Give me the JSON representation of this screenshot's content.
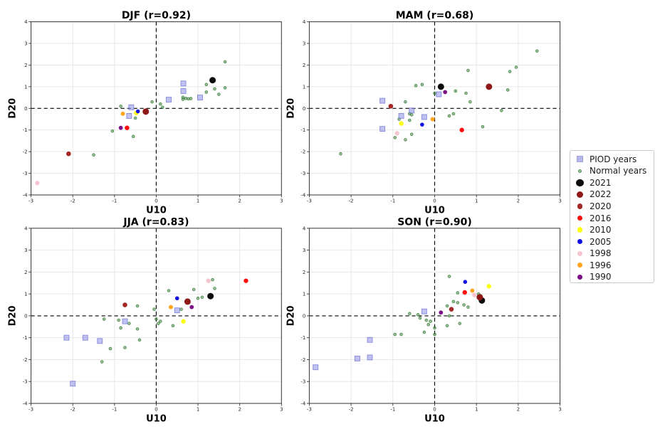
{
  "legend": {
    "items": [
      {
        "key": "piod",
        "label": "PIOD years",
        "marker": "square",
        "color": "#b5b7e9",
        "edge": "#9fa2de",
        "legend_size": 7
      },
      {
        "key": "normal",
        "label": "Normal years",
        "marker": "dot",
        "color": "#9cc49c",
        "edge": "#559155",
        "legend_size": 3.4
      },
      {
        "key": "2021",
        "label": "2021",
        "marker": "dot",
        "color": "#0a0a0a",
        "legend_size": 10.2
      },
      {
        "key": "2022",
        "label": "2022",
        "marker": "dot",
        "color": "#8e1818",
        "legend_size": 9.8
      },
      {
        "key": "2020",
        "label": "2020",
        "marker": "dot",
        "color": "#a32727",
        "legend_size": 7.2
      },
      {
        "key": "2016",
        "label": "2016",
        "marker": "dot",
        "color": "#fc0d0d",
        "legend_size": 7.2
      },
      {
        "key": "2010",
        "label": "2010",
        "marker": "dot",
        "color": "#fdfd13",
        "legend_size": 7.6
      },
      {
        "key": "2005",
        "label": "2005",
        "marker": "dot",
        "color": "#1212e0",
        "legend_size": 7.0
      },
      {
        "key": "1998",
        "label": "1998",
        "marker": "dot",
        "color": "#f6c3d0",
        "legend_size": 7.2
      },
      {
        "key": "1996",
        "label": "1996",
        "marker": "dot",
        "color": "#ffa51e",
        "legend_size": 6.8
      },
      {
        "key": "1990",
        "label": "1990",
        "marker": "dot",
        "color": "#7d0f86",
        "legend_size": 6.8
      }
    ]
  },
  "chart_data": [
    {
      "type": "scatter",
      "id": "djf",
      "title": "DJF (r=0.92)",
      "r": 0.92,
      "xlabel": "U10",
      "ylabel": "D20",
      "xlim": [
        -3,
        3
      ],
      "ylim": [
        -4,
        4
      ],
      "xticks": [
        -3,
        -2,
        -1,
        0,
        1,
        2,
        3
      ],
      "yticks": [
        -4,
        -3,
        -2,
        -1,
        0,
        1,
        2,
        3,
        4
      ],
      "series": {
        "normal": [
          [
            -1.5,
            -2.15
          ],
          [
            -1.05,
            -1.05
          ],
          [
            -0.85,
            0.1
          ],
          [
            -0.55,
            -1.3
          ],
          [
            -0.5,
            -0.45
          ],
          [
            -0.1,
            0.3
          ],
          [
            0.1,
            0.2
          ],
          [
            0.15,
            0.05
          ],
          [
            0.64,
            0.51
          ],
          [
            0.64,
            0.42
          ],
          [
            0.71,
            0.46
          ],
          [
            0.77,
            0.44
          ],
          [
            0.83,
            0.45
          ],
          [
            1.2,
            1.1
          ],
          [
            1.2,
            0.75
          ],
          [
            1.4,
            0.9
          ],
          [
            1.5,
            0.65
          ],
          [
            1.65,
            0.95
          ],
          [
            1.65,
            2.15
          ]
        ],
        "piod": [
          [
            -0.6,
            0.05
          ],
          [
            -0.65,
            -0.35
          ],
          [
            0.3,
            0.4
          ],
          [
            0.65,
            1.15
          ],
          [
            0.65,
            0.8
          ],
          [
            1.05,
            0.5
          ]
        ],
        "2021": [
          [
            1.35,
            1.3
          ]
        ],
        "2022": [
          [
            -0.25,
            -0.15
          ]
        ],
        "2020": [
          [
            -2.1,
            -2.1
          ]
        ],
        "2016": [
          [
            -0.7,
            -0.9
          ]
        ],
        "2010": [
          [
            -0.48,
            -0.22
          ]
        ],
        "2005": [
          [
            -0.44,
            -0.14
          ]
        ],
        "1998": [
          [
            -2.85,
            -3.45
          ]
        ],
        "1996": [
          [
            -0.8,
            -0.25
          ]
        ],
        "1990": [
          [
            -0.85,
            -0.9
          ]
        ]
      }
    },
    {
      "type": "scatter",
      "id": "mam",
      "title": "MAM (r=0.68)",
      "r": 0.68,
      "xlabel": "U10",
      "ylabel": "D20",
      "xlim": [
        -3,
        3
      ],
      "ylim": [
        -4,
        4
      ],
      "xticks": [
        -3,
        -2,
        -1,
        0,
        1,
        2,
        3
      ],
      "yticks": [
        -4,
        -3,
        -2,
        -1,
        0,
        1,
        2,
        3,
        4
      ],
      "series": {
        "normal": [
          [
            -2.25,
            -2.1
          ],
          [
            -0.95,
            -1.35
          ],
          [
            -0.7,
            -1.45
          ],
          [
            -0.55,
            -1.2
          ],
          [
            -0.85,
            -0.5
          ],
          [
            -0.7,
            0.3
          ],
          [
            -0.6,
            -0.25
          ],
          [
            -0.55,
            -0.3
          ],
          [
            -0.6,
            -0.55
          ],
          [
            -0.45,
            1.05
          ],
          [
            -0.3,
            1.1
          ],
          [
            0.0,
            0.7
          ],
          [
            0.35,
            -0.35
          ],
          [
            0.45,
            -0.25
          ],
          [
            0.5,
            0.8
          ],
          [
            0.75,
            0.7
          ],
          [
            0.8,
            1.75
          ],
          [
            0.85,
            0.3
          ],
          [
            1.15,
            -0.85
          ],
          [
            1.6,
            -0.1
          ],
          [
            1.75,
            0.85
          ],
          [
            1.8,
            1.7
          ],
          [
            1.95,
            1.9
          ],
          [
            2.45,
            2.65
          ]
        ],
        "piod": [
          [
            -1.25,
            0.35
          ],
          [
            -1.25,
            -0.95
          ],
          [
            -0.8,
            -0.35
          ],
          [
            -0.55,
            -0.1
          ],
          [
            -0.25,
            -0.4
          ],
          [
            0.1,
            0.65
          ]
        ],
        "2021": [
          [
            0.15,
            1.0
          ]
        ],
        "2022": [
          [
            1.3,
            1.0
          ]
        ],
        "2020": [
          [
            -1.05,
            0.1
          ]
        ],
        "2016": [
          [
            0.65,
            -1.0
          ]
        ],
        "2010": [
          [
            -0.8,
            -0.7
          ]
        ],
        "2005": [
          [
            -0.3,
            -0.75
          ]
        ],
        "1998": [
          [
            -0.9,
            -1.15
          ]
        ],
        "1996": [
          [
            -0.05,
            -0.5
          ]
        ],
        "1990": [
          [
            0.25,
            0.75
          ]
        ]
      }
    },
    {
      "type": "scatter",
      "id": "jja",
      "title": "JJA (r=0.83)",
      "r": 0.83,
      "xlabel": "U10",
      "ylabel": "D20",
      "xlim": [
        -3,
        3
      ],
      "ylim": [
        -4,
        4
      ],
      "xticks": [
        -3,
        -2,
        -1,
        0,
        1,
        2,
        3
      ],
      "yticks": [
        -4,
        -3,
        -2,
        -1,
        0,
        1,
        2,
        3,
        4
      ],
      "series": {
        "normal": [
          [
            -1.3,
            -2.1
          ],
          [
            -1.1,
            -1.5
          ],
          [
            -0.75,
            -1.45
          ],
          [
            -1.25,
            -0.15
          ],
          [
            -0.9,
            -0.2
          ],
          [
            -0.85,
            -0.55
          ],
          [
            -0.65,
            -0.35
          ],
          [
            -0.45,
            -0.6
          ],
          [
            -0.4,
            -1.1
          ],
          [
            -0.45,
            0.45
          ],
          [
            -0.05,
            0.3
          ],
          [
            0.0,
            -0.15
          ],
          [
            0.1,
            -0.25
          ],
          [
            0.05,
            -0.35
          ],
          [
            0.4,
            -0.45
          ],
          [
            0.3,
            1.15
          ],
          [
            0.6,
            0.3
          ],
          [
            0.9,
            1.2
          ],
          [
            1.0,
            0.8
          ],
          [
            1.1,
            0.85
          ],
          [
            1.35,
            1.65
          ],
          [
            1.4,
            1.25
          ]
        ],
        "piod": [
          [
            -2.15,
            -1.0
          ],
          [
            -1.7,
            -1.0
          ],
          [
            -1.35,
            -1.15
          ],
          [
            -2.0,
            -3.1
          ],
          [
            -0.75,
            -0.25
          ],
          [
            0.5,
            0.25
          ]
        ],
        "2021": [
          [
            1.3,
            0.9
          ]
        ],
        "2022": [
          [
            0.75,
            0.65
          ]
        ],
        "2020": [
          [
            -0.75,
            0.5
          ]
        ],
        "2016": [
          [
            2.15,
            1.6
          ]
        ],
        "2010": [
          [
            0.65,
            -0.25
          ]
        ],
        "2005": [
          [
            0.5,
            0.8
          ]
        ],
        "1998": [
          [
            1.25,
            1.6
          ]
        ],
        "1996": [
          [
            0.35,
            0.4
          ]
        ],
        "1990": [
          [
            0.85,
            0.4
          ]
        ]
      }
    },
    {
      "type": "scatter",
      "id": "son",
      "title": "SON (r=0.90)",
      "r": 0.9,
      "xlabel": "U10",
      "ylabel": "D20",
      "xlim": [
        -3,
        3
      ],
      "ylim": [
        -4,
        4
      ],
      "xticks": [
        -3,
        -2,
        -1,
        0,
        1,
        2,
        3
      ],
      "yticks": [
        -4,
        -3,
        -2,
        -1,
        0,
        1,
        2,
        3,
        4
      ],
      "series": {
        "normal": [
          [
            0.35,
            1.8
          ],
          [
            0.55,
            1.05
          ],
          [
            1.05,
            1.0
          ],
          [
            0.45,
            0.65
          ],
          [
            0.55,
            0.6
          ],
          [
            0.7,
            0.5
          ],
          [
            0.8,
            0.4
          ],
          [
            0.3,
            0.45
          ],
          [
            0.35,
            0.0
          ],
          [
            -0.4,
            0.05
          ],
          [
            -0.6,
            0.1
          ],
          [
            -0.35,
            -0.1
          ],
          [
            -0.2,
            -0.2
          ],
          [
            -0.1,
            -0.25
          ],
          [
            -0.15,
            -0.4
          ],
          [
            0.0,
            -0.55
          ],
          [
            0.3,
            -0.45
          ],
          [
            0.6,
            -0.35
          ],
          [
            0.0,
            -0.85
          ],
          [
            -0.25,
            -0.75
          ],
          [
            -0.95,
            -0.85
          ],
          [
            -0.8,
            -0.85
          ]
        ],
        "piod": [
          [
            -0.25,
            0.2
          ],
          [
            -1.55,
            -1.1
          ],
          [
            -1.85,
            -1.95
          ],
          [
            -1.55,
            -1.9
          ],
          [
            -2.85,
            -2.35
          ]
        ],
        "2021": [
          [
            1.13,
            0.7
          ]
        ],
        "2022": [
          [
            1.08,
            0.85
          ]
        ],
        "2020": [
          [
            0.4,
            0.3
          ]
        ],
        "2016": [
          [
            0.72,
            1.07
          ]
        ],
        "2010": [
          [
            1.3,
            1.35
          ]
        ],
        "2005": [
          [
            0.73,
            1.55
          ]
        ],
        "1998": [
          [
            0.95,
            0.95
          ]
        ],
        "1996": [
          [
            0.9,
            1.15
          ]
        ],
        "1990": [
          [
            0.15,
            0.15
          ]
        ]
      }
    }
  ]
}
